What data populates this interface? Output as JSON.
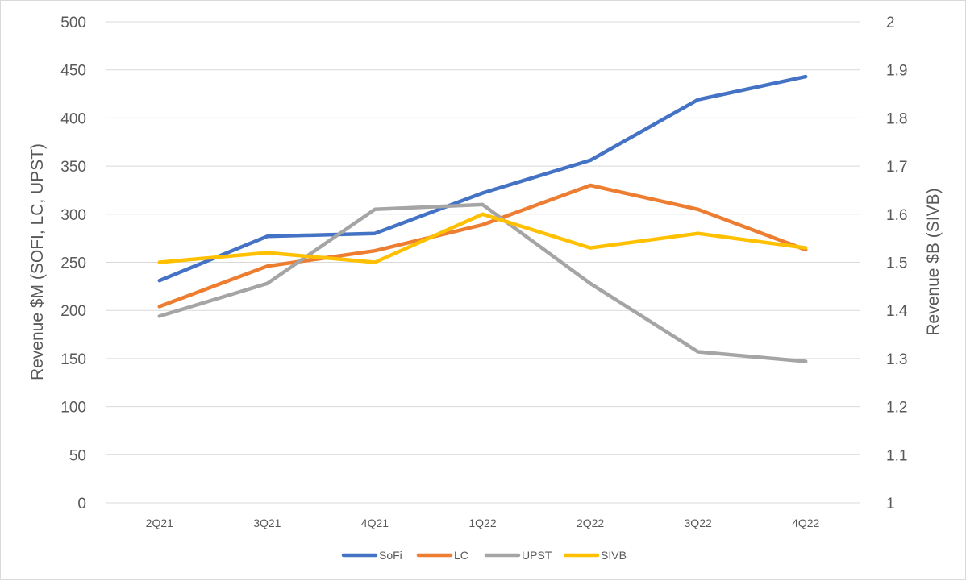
{
  "chart_data": {
    "type": "line",
    "categories": [
      "2Q21",
      "3Q21",
      "4Q21",
      "1Q22",
      "2Q22",
      "3Q22",
      "4Q22"
    ],
    "ylabel_left": "Revenue $M (SOFI, LC, UPST)",
    "ylabel_right": "Revenue $B (SIVB)",
    "ylim_left": [
      0,
      500
    ],
    "ylim_right": [
      1,
      2
    ],
    "yticks_left": [
      "0",
      "50",
      "100",
      "150",
      "200",
      "250",
      "300",
      "350",
      "400",
      "450",
      "500"
    ],
    "yticks_right": [
      "1",
      "1.1",
      "1.2",
      "1.3",
      "1.4",
      "1.5",
      "1.6",
      "1.7",
      "1.8",
      "1.9",
      "2"
    ],
    "grid": true,
    "legend_position": "bottom",
    "series": [
      {
        "name": "SoFi",
        "axis": "left",
        "color": "#4472C4",
        "values": [
          231,
          277,
          280,
          322,
          356,
          419,
          443
        ]
      },
      {
        "name": "LC",
        "axis": "left",
        "color": "#ED7D31",
        "values": [
          204,
          246,
          262,
          289,
          330,
          305,
          263
        ]
      },
      {
        "name": "UPST",
        "axis": "left",
        "color": "#A5A5A5",
        "values": [
          194,
          228,
          305,
          310,
          228,
          157,
          147
        ]
      },
      {
        "name": "SIVB",
        "axis": "right",
        "color": "#FFC000",
        "values": [
          1.5,
          1.52,
          1.5,
          1.6,
          1.53,
          1.56,
          1.53
        ]
      }
    ]
  }
}
